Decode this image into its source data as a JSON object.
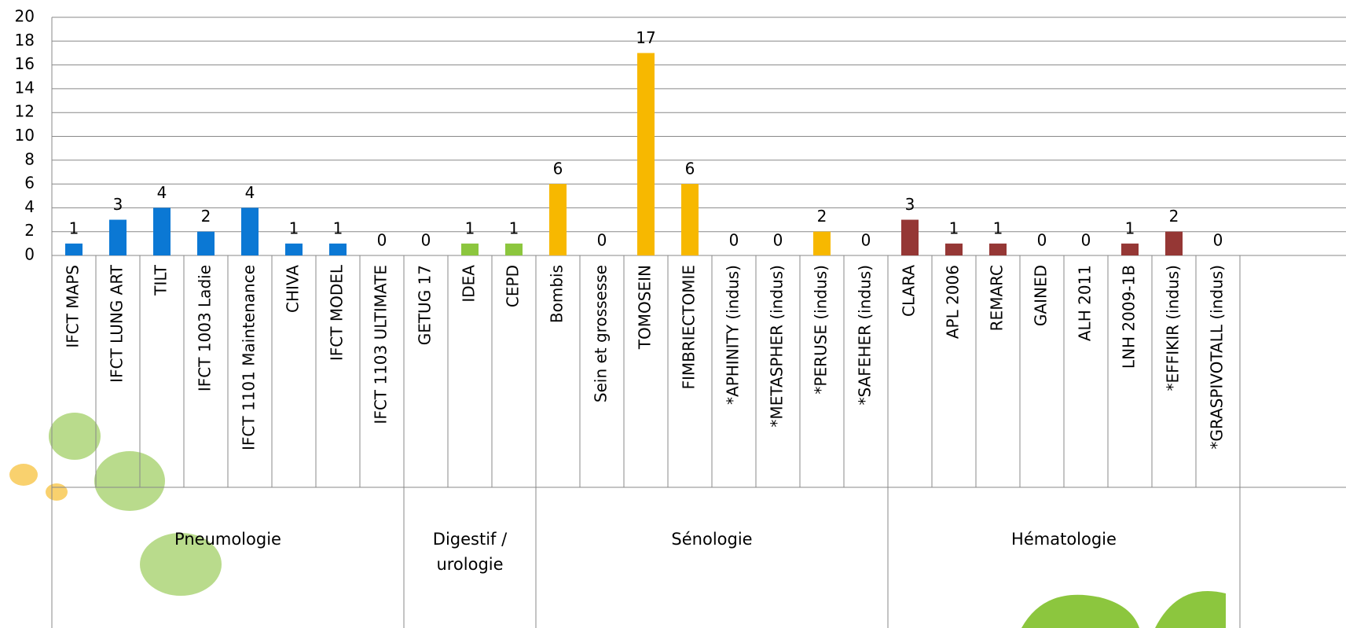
{
  "chart_data": {
    "type": "bar",
    "ylim": [
      0,
      20
    ],
    "yticks": [
      0,
      2,
      4,
      6,
      8,
      10,
      12,
      14,
      16,
      18,
      20
    ],
    "grid": true,
    "groups": [
      {
        "name": "Pneumologie",
        "color": "#0b78d4",
        "categories": [
          "IFCT MAPS",
          "IFCT LUNG ART",
          "TILT",
          "IFCT 1003 Ladie",
          "IFCT 1101 Maintenance",
          "CHIVA",
          "IFCT MODEL",
          "IFCT 1103 ULTIMATE"
        ],
        "values": [
          1,
          3,
          4,
          2,
          4,
          1,
          1,
          0
        ]
      },
      {
        "name": "Digestif / urologie",
        "color": "#8cc63e",
        "categories": [
          "GETUG 17",
          "IDEA",
          "CEPD"
        ],
        "values": [
          0,
          1,
          1
        ]
      },
      {
        "name": "Sénologie",
        "color": "#f7b800",
        "categories": [
          "Bombis",
          "Sein et grossesse",
          "TOMOSEIN",
          "FIMBRIECTOMIE",
          "*APHINITY (indus)",
          "*METASPHER (indus)",
          "*PERUSE (indus)",
          "*SAFEHER (indus)"
        ],
        "values": [
          6,
          0,
          17,
          6,
          0,
          0,
          2,
          0
        ]
      },
      {
        "name": "Hématologie",
        "color": "#953735",
        "categories": [
          "CLARA",
          "APL 2006",
          "REMARC",
          "GAINED",
          "ALH 2011",
          "LNH 2009-1B",
          "*EFFIKIR (indus)",
          "*GRASPIVOTALL (indus)"
        ],
        "values": [
          3,
          1,
          1,
          0,
          0,
          1,
          2,
          0
        ]
      }
    ]
  }
}
